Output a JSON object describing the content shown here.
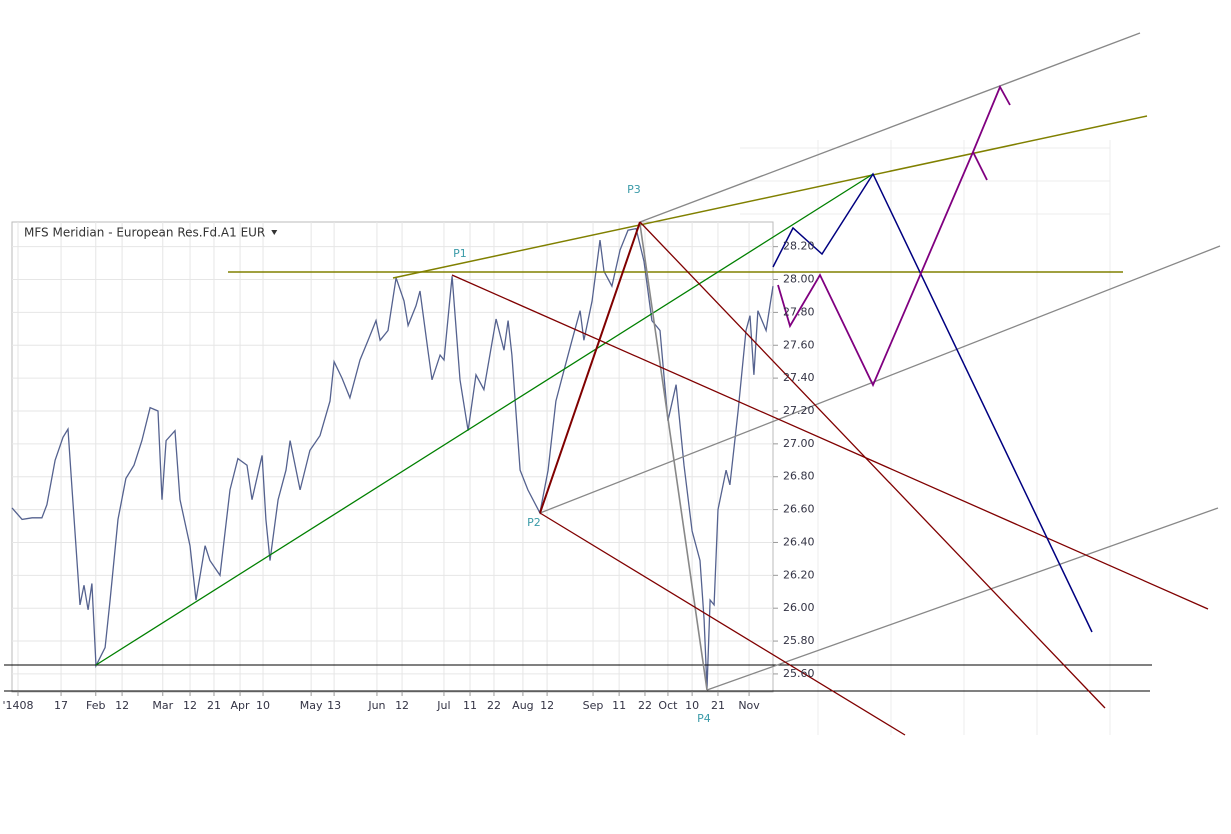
{
  "chart_data": {
    "type": "line",
    "title": "MFS Meridian - European Res.Fd.A1 EUR",
    "annotations": [
      "P1",
      "P2",
      "P3",
      "P4"
    ],
    "color": "#55628f",
    "grid": true,
    "xlim": [
      0,
      318
    ],
    "ylim": [
      25.49,
      28.35
    ],
    "yticks": [
      {
        "value": 25.6,
        "label": "25.60"
      },
      {
        "value": 25.8,
        "label": "25.80"
      },
      {
        "value": 26.0,
        "label": "26.00"
      },
      {
        "value": 26.2,
        "label": "26.20"
      },
      {
        "value": 26.4,
        "label": "26.40"
      },
      {
        "value": 26.6,
        "label": "26.60"
      },
      {
        "value": 26.8,
        "label": "26.80"
      },
      {
        "value": 27.0,
        "label": "27.00"
      },
      {
        "value": 27.2,
        "label": "27.20"
      },
      {
        "value": 27.4,
        "label": "27.40"
      },
      {
        "value": 27.6,
        "label": "27.60"
      },
      {
        "value": 27.8,
        "label": "27.80"
      },
      {
        "value": 28.0,
        "label": "28.00"
      },
      {
        "value": 28.2,
        "label": "28.20"
      }
    ],
    "xticks": [
      {
        "value": 2.5,
        "label": "'1408"
      },
      {
        "value": 20.5,
        "label": "17"
      },
      {
        "value": 35,
        "label": "Feb"
      },
      {
        "value": 46,
        "label": "12"
      },
      {
        "value": 63,
        "label": "Mar"
      },
      {
        "value": 74.4,
        "label": "12"
      },
      {
        "value": 84.4,
        "label": "21"
      },
      {
        "value": 95.3,
        "label": "Apr"
      },
      {
        "value": 104.9,
        "label": "10"
      },
      {
        "value": 125,
        "label": "May"
      },
      {
        "value": 134.6,
        "label": "13"
      },
      {
        "value": 152.5,
        "label": "Jun"
      },
      {
        "value": 163,
        "label": "12"
      },
      {
        "value": 180.5,
        "label": "Jul"
      },
      {
        "value": 191.4,
        "label": "11"
      },
      {
        "value": 201.4,
        "label": "22"
      },
      {
        "value": 213.5,
        "label": "Aug"
      },
      {
        "value": 223.6,
        "label": "12"
      },
      {
        "value": 242.8,
        "label": "Sep"
      },
      {
        "value": 253.7,
        "label": "11"
      },
      {
        "value": 264.5,
        "label": "22"
      },
      {
        "value": 274.1,
        "label": "Oct"
      },
      {
        "value": 284.2,
        "label": "10"
      },
      {
        "value": 295,
        "label": "21"
      },
      {
        "value": 308,
        "label": "Nov"
      }
    ],
    "x": [
      0,
      4.2,
      8.4,
      12.5,
      14.6,
      18.0,
      21.3,
      23.4,
      25.1,
      28.4,
      30.1,
      31.8,
      33.4,
      35.1,
      38.9,
      41.0,
      44.3,
      47.6,
      51.0,
      54.3,
      57.7,
      61.0,
      62.7,
      64.4,
      68.1,
      70.2,
      74.4,
      76.9,
      80.7,
      82.7,
      86.9,
      91.1,
      94.4,
      98.2,
      100.3,
      104.5,
      106.1,
      107.8,
      111.2,
      114.5,
      116.2,
      120.4,
      124.5,
      128.7,
      132.9,
      134.6,
      137.9,
      141.2,
      145.4,
      148.8,
      152.1,
      153.8,
      157.1,
      160.5,
      163.8,
      165.5,
      168.8,
      170.5,
      173.8,
      175.5,
      178.9,
      180.5,
      183.9,
      187.2,
      190.6,
      193.9,
      197.2,
      202.3,
      205.6,
      207.3,
      208.9,
      212.3,
      215.6,
      220.6,
      224.0,
      227.3,
      230.7,
      234.0,
      237.4,
      239.0,
      242.4,
      245.7,
      247.4,
      250.7,
      254.1,
      257.4,
      260.8,
      264.1,
      267.4,
      270.8,
      274.1,
      277.5,
      280.8,
      284.2,
      287.5,
      289.2,
      290.4,
      291.7,
      293.4,
      295.0,
      298.4,
      300.0,
      303.4,
      306.7,
      308.4,
      310.0,
      311.7,
      315.1,
      318.0
    ],
    "values": [
      26.61,
      26.54,
      26.55,
      26.55,
      26.63,
      26.9,
      27.04,
      27.09,
      26.72,
      26.02,
      26.14,
      25.99,
      26.15,
      25.65,
      25.76,
      26.05,
      26.54,
      26.79,
      26.87,
      27.02,
      27.22,
      27.2,
      26.66,
      27.02,
      27.08,
      26.66,
      26.38,
      26.05,
      26.38,
      26.29,
      26.2,
      26.72,
      26.91,
      26.87,
      26.66,
      26.93,
      26.54,
      26.29,
      26.66,
      26.84,
      27.02,
      26.72,
      26.96,
      27.05,
      27.26,
      27.5,
      27.4,
      27.28,
      27.51,
      27.63,
      27.75,
      27.63,
      27.69,
      28.01,
      27.87,
      27.72,
      27.84,
      27.93,
      27.57,
      27.39,
      27.54,
      27.51,
      28.02,
      27.39,
      27.08,
      27.42,
      27.33,
      27.76,
      27.57,
      27.75,
      27.54,
      26.84,
      26.72,
      26.58,
      26.84,
      27.26,
      27.45,
      27.63,
      27.81,
      27.63,
      27.87,
      28.24,
      28.05,
      27.96,
      28.18,
      28.3,
      28.31,
      28.11,
      27.75,
      27.69,
      27.14,
      27.36,
      26.87,
      26.47,
      26.29,
      25.93,
      25.51,
      26.05,
      26.02,
      26.6,
      26.84,
      26.75,
      27.2,
      27.69,
      27.78,
      27.42,
      27.81,
      27.69,
      27.96
    ]
  }
}
